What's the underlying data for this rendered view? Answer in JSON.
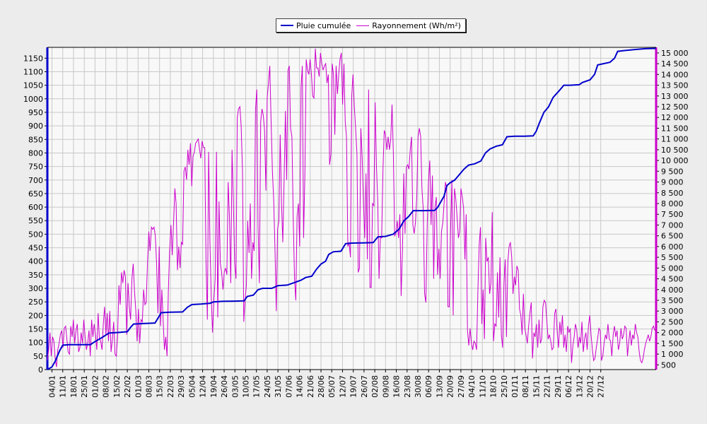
{
  "chart_data": {
    "type": "line",
    "title": "",
    "legend": {
      "placement": "top-center",
      "items": [
        {
          "label": "Pluie cumulée",
          "color": "#0000cc"
        },
        {
          "label": "Rayonnement (Wh/m²)",
          "color": "#cc00cc"
        }
      ]
    },
    "x_tick_labels": [
      "04/01",
      "11/01",
      "18/01",
      "25/01",
      "01/02",
      "08/02",
      "15/02",
      "22/02",
      "01/03",
      "08/03",
      "15/03",
      "22/03",
      "29/03",
      "05/04",
      "12/04",
      "19/04",
      "26/04",
      "03/05",
      "10/05",
      "17/05",
      "24/05",
      "31/05",
      "07/06",
      "14/06",
      "21/06",
      "28/06",
      "05/07",
      "12/07",
      "19/07",
      "26/07",
      "02/08",
      "09/08",
      "16/08",
      "23/08",
      "30/08",
      "06/09",
      "13/09",
      "20/09",
      "27/09",
      "04/10",
      "11/10",
      "18/10",
      "25/10",
      "01/11",
      "08/11",
      "15/11",
      "22/11",
      "29/11",
      "06/12",
      "13/12",
      "20/12",
      "27/12"
    ],
    "y_left": {
      "min": 0,
      "max": 1190,
      "ticks": [
        0,
        50,
        100,
        150,
        200,
        250,
        300,
        350,
        400,
        450,
        500,
        550,
        600,
        650,
        700,
        750,
        800,
        850,
        900,
        950,
        1000,
        1050,
        1100,
        1150
      ]
    },
    "y_right": {
      "min": 280,
      "max": 15260,
      "ticks": [
        "500",
        "1 000",
        "1 500",
        "2 000",
        "2 500",
        "3 000",
        "3 500",
        "4 000",
        "4 500",
        "5 000",
        "5 500",
        "6 000",
        "6 500",
        "7 000",
        "7 500",
        "8 000",
        "8 500",
        "9 000",
        "9 500",
        "10 000",
        "10 500",
        "11 000",
        "11 500",
        "12 000",
        "12 500",
        "13 000",
        "13 500",
        "14 000",
        "14 500",
        "15 000"
      ]
    },
    "grid": true,
    "series": [
      {
        "name": "Pluie cumulée",
        "color": "#0000cc",
        "axis": "left",
        "points": [
          [
            0,
            0
          ],
          [
            3,
            10
          ],
          [
            5,
            30
          ],
          [
            8,
            70
          ],
          [
            10,
            90
          ],
          [
            14,
            92
          ],
          [
            20,
            92
          ],
          [
            28,
            92
          ],
          [
            30,
            100
          ],
          [
            33,
            110
          ],
          [
            36,
            120
          ],
          [
            40,
            135
          ],
          [
            46,
            137
          ],
          [
            52,
            140
          ],
          [
            54,
            155
          ],
          [
            56,
            168
          ],
          [
            62,
            170
          ],
          [
            70,
            172
          ],
          [
            72,
            190
          ],
          [
            74,
            210
          ],
          [
            80,
            212
          ],
          [
            88,
            213
          ],
          [
            91,
            230
          ],
          [
            94,
            240
          ],
          [
            100,
            242
          ],
          [
            106,
            245
          ],
          [
            108,
            250
          ],
          [
            114,
            252
          ],
          [
            122,
            253
          ],
          [
            128,
            254
          ],
          [
            130,
            270
          ],
          [
            134,
            275
          ],
          [
            137,
            295
          ],
          [
            140,
            300
          ],
          [
            146,
            300
          ],
          [
            150,
            310
          ],
          [
            156,
            312
          ],
          [
            160,
            320
          ],
          [
            165,
            330
          ],
          [
            168,
            340
          ],
          [
            172,
            345
          ],
          [
            175,
            370
          ],
          [
            178,
            390
          ],
          [
            181,
            400
          ],
          [
            183,
            425
          ],
          [
            186,
            435
          ],
          [
            191,
            437
          ],
          [
            194,
            465
          ],
          [
            198,
            467
          ],
          [
            205,
            468
          ],
          [
            212,
            469
          ],
          [
            215,
            490
          ],
          [
            220,
            492
          ],
          [
            225,
            500
          ],
          [
            229,
            520
          ],
          [
            232,
            550
          ],
          [
            235,
            565
          ],
          [
            238,
            587
          ],
          [
            244,
            587
          ],
          [
            252,
            588
          ],
          [
            254,
            600
          ],
          [
            256,
            620
          ],
          [
            258,
            640
          ],
          [
            260,
            680
          ],
          [
            262,
            690
          ],
          [
            265,
            700
          ],
          [
            268,
            720
          ],
          [
            271,
            740
          ],
          [
            274,
            755
          ],
          [
            278,
            760
          ],
          [
            282,
            770
          ],
          [
            285,
            800
          ],
          [
            288,
            815
          ],
          [
            292,
            825
          ],
          [
            296,
            830
          ],
          [
            299,
            860
          ],
          [
            304,
            862
          ],
          [
            310,
            862
          ],
          [
            316,
            863
          ],
          [
            318,
            880
          ],
          [
            320,
            910
          ],
          [
            323,
            950
          ],
          [
            326,
            970
          ],
          [
            329,
            1005
          ],
          [
            333,
            1030
          ],
          [
            336,
            1050
          ],
          [
            340,
            1050
          ],
          [
            346,
            1052
          ],
          [
            348,
            1060
          ],
          [
            353,
            1070
          ],
          [
            356,
            1090
          ],
          [
            358,
            1125
          ],
          [
            362,
            1130
          ],
          [
            366,
            1135
          ],
          [
            369,
            1150
          ],
          [
            371,
            1175
          ],
          [
            375,
            1178
          ],
          [
            382,
            1182
          ],
          [
            389,
            1185
          ],
          [
            396,
            1186
          ]
        ]
      },
      {
        "name": "Rayonnement (Wh/m²)",
        "color": "#cc00cc",
        "axis": "right",
        "x_start": 0,
        "x_step": 1,
        "values": [
          700,
          1200,
          2000,
          900,
          1800,
          1600,
          800,
          400,
          1200,
          1500,
          1900,
          2100,
          1300,
          2200,
          2300,
          1700,
          1100,
          1000,
          2300,
          1800,
          2600,
          1500,
          2100,
          2400,
          1100,
          1300,
          2000,
          1500,
          2600,
          1800,
          1200,
          1500,
          2100,
          900,
          2600,
          1800,
          2400,
          1900,
          1200,
          2900,
          1700,
          1600,
          1200,
          2400,
          3200,
          1900,
          2900,
          1600,
          3000,
          1100,
          1700,
          2500,
          1000,
          900,
          1800,
          4200,
          3300,
          4800,
          4300,
          4900,
          4600,
          1900,
          4300,
          3200,
          2600,
          4500,
          5200,
          3900,
          3000,
          1600,
          3100,
          1500,
          2600,
          2500,
          4000,
          3300,
          3400,
          5300,
          6700,
          5800,
          6900,
          6800,
          6900,
          6500,
          5200,
          2900,
          6000,
          2300,
          4000,
          2600,
          1200,
          1800,
          900,
          3900,
          5800,
          7000,
          5600,
          7100,
          8700,
          8000,
          4900,
          6000,
          5000,
          6200,
          6100,
          9500,
          9700,
          9100,
          10500,
          9800,
          10800,
          8800,
          10200,
          10400,
          10800,
          10900,
          11000,
          10500,
          10100,
          10900,
          10600,
          10600,
          5300,
          2600,
          10400,
          6100,
          3700,
          2000,
          3500,
          4500,
          10400,
          2700,
          8100,
          5200,
          4800,
          4000,
          4800,
          5000,
          4700,
          9000,
          7300,
          4300,
          10500,
          8100,
          5200,
          4500,
          12000,
          12400,
          12500,
          11600,
          9500,
          2500,
          3500,
          4200,
          7200,
          5700,
          8000,
          4500,
          6200,
          5800,
          12400,
          13300,
          6900,
          4300,
          11800,
          12400,
          12100,
          11400,
          8600,
          12900,
          13600,
          14400,
          11900,
          9500,
          8200,
          5800,
          3000,
          6800,
          7200,
          11200,
          8000,
          6200,
          9000,
          12300,
          9100,
          14200,
          14400,
          11500,
          11100,
          7400,
          4500,
          3500,
          7400,
          8000,
          6000,
          13400,
          14400,
          6400,
          9500,
          14700,
          14200,
          14000,
          14700,
          14000,
          13000,
          12900,
          15200,
          14300,
          14300,
          13900,
          15000,
          14500,
          14200,
          14400,
          14500,
          13600,
          14000,
          9800,
          10300,
          14500,
          14000,
          11200,
          14400,
          13100,
          14000,
          14700,
          15000,
          12600,
          14500,
          11800,
          11100,
          6000,
          6200,
          5500,
          13000,
          14000,
          12500,
          11500,
          10300,
          4800,
          5000,
          11500,
          10200,
          8000,
          6400,
          9400,
          5400,
          13300,
          4100,
          4100,
          8000,
          7900,
          12700,
          9700,
          8100,
          4500,
          6400,
          6400,
          9600,
          11400,
          11200,
          10500,
          11100,
          10500,
          11000,
          12600,
          10300,
          6500,
          6600,
          7200,
          6400,
          7500,
          3700,
          5900,
          9400,
          6600,
          9700,
          9800,
          9600,
          10500,
          11100,
          7000,
          6600,
          7100,
          8300,
          11100,
          11500,
          11100,
          8700,
          7700,
          3800,
          3400,
          6900,
          9000,
          10000,
          7000,
          9300,
          4500,
          7800,
          8300,
          4700,
          5900,
          4500,
          6700,
          7100,
          8000,
          9000,
          8700,
          3200,
          3200,
          6800,
          9100,
          2800,
          8700,
          8200,
          7400,
          6400,
          6700,
          8700,
          8300,
          7800,
          5400,
          7500,
          2100,
          1400,
          2200,
          1500,
          1200,
          1600,
          1500,
          1200,
          4000,
          6100,
          6900,
          2400,
          4000,
          1700,
          6400,
          5300,
          5500,
          3800,
          4300,
          7600,
          1600,
          2400,
          2300,
          4800,
          2700,
          5500,
          1900,
          1300,
          4300,
          5400,
          1800,
          5300,
          6000,
          6200,
          5500,
          3800,
          4600,
          4200,
          5100,
          4900,
          3100,
          2800,
          1900,
          3800,
          2200,
          1900,
          1500,
          2300,
          2900,
          3400,
          800,
          2000,
          1800,
          2400,
          1300,
          2600,
          1500,
          1700,
          3200,
          3500,
          3400,
          2500,
          1700,
          1900,
          1600,
          1200,
          1300,
          2900,
          3100,
          2000,
          1300,
          2500,
          1900,
          2800,
          1300,
          1900,
          1100,
          2300,
          2000,
          2200,
          600,
          1400,
          1800,
          2400,
          2100,
          1300,
          1800,
          1500,
          2500,
          1100,
          1700,
          2000,
          1200,
          2300,
          2800,
          1900,
          1200,
          700,
          800,
          1300,
          1700,
          2200,
          2100,
          700,
          900,
          1500,
          1900,
          1700,
          2400,
          1700,
          1600,
          900,
          1900,
          2300,
          1800,
          2100,
          1200,
          1500,
          2200,
          1700,
          1900,
          2300,
          2200,
          900,
          1600,
          2100,
          1400,
          1900,
          1700,
          2400,
          2000,
          1800,
          1100,
          700,
          600,
          800,
          1200,
          1500,
          1700,
          1900,
          1600,
          1800,
          2200,
          2300,
          2100
        ]
      }
    ]
  }
}
